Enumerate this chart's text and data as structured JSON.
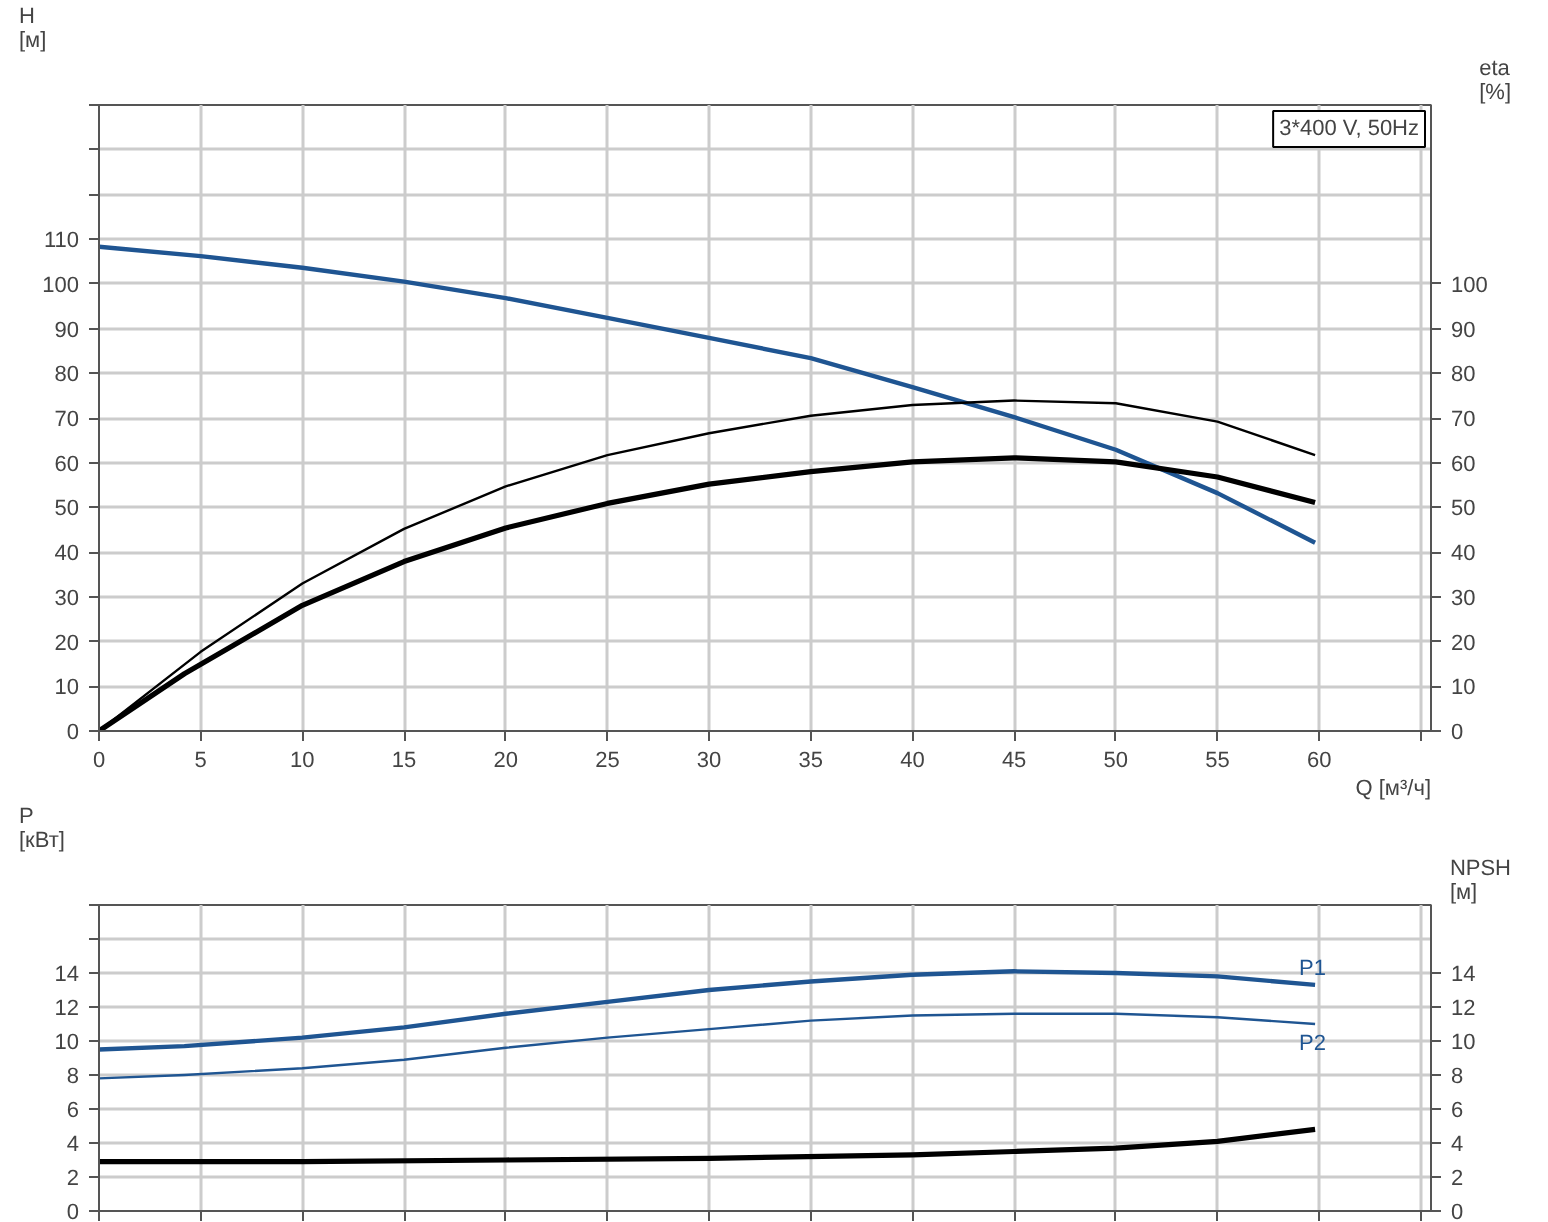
{
  "chart_data": [
    {
      "type": "line",
      "xlabel": "Q [м³/ч]",
      "ylabel": "H\n[м]",
      "y2label": "eta\n[%]",
      "annotations": [
        "3*400 V, 50Hz"
      ],
      "xlim": [
        0,
        65.5
      ],
      "xticks": [
        0,
        5,
        10,
        15,
        20,
        25,
        30,
        35,
        40,
        45,
        50,
        55,
        60,
        {
          "value": 65,
          "label": null
        }
      ],
      "ylim": [
        0,
        140
      ],
      "yticks": [
        0,
        10,
        20,
        30,
        40,
        50,
        60,
        70,
        80,
        90,
        100,
        110,
        {
          "value": 120,
          "label": null
        },
        {
          "value": 130,
          "label": null
        },
        {
          "value": 140,
          "label": null
        }
      ],
      "y2lim": [
        0,
        140
      ],
      "y2ticks": [
        0,
        10,
        20,
        30,
        40,
        50,
        60,
        70,
        80,
        90,
        100
      ],
      "grid": true,
      "line_style": "solid",
      "series": [
        {
          "color": "#1f5592",
          "x": [
            0,
            5,
            10,
            15,
            20,
            25,
            30,
            35,
            40,
            45,
            50,
            55,
            59.8
          ],
          "values": [
            108.3,
            106.2,
            103.6,
            100.5,
            96.8,
            92.4,
            87.9,
            83.4,
            76.9,
            70.2,
            62.9,
            53.2,
            42.1
          ]
        },
        {
          "color": "#000000",
          "x": [
            0,
            5,
            10,
            15,
            20,
            25,
            30,
            35,
            40,
            45,
            50,
            55,
            59.8
          ],
          "values": [
            0,
            17.7,
            33,
            45.2,
            54.7,
            61.7,
            66.6,
            70.5,
            72.9,
            73.9,
            73.3,
            69.2,
            61.7
          ]
        },
        {
          "color": "#000000",
          "x": [
            0,
            4.2,
            10,
            15,
            20,
            25,
            30,
            35,
            40,
            45,
            50,
            55,
            59.8
          ],
          "values": [
            0,
            12.8,
            28.1,
            37.9,
            45.4,
            50.9,
            55.2,
            58.0,
            60.2,
            61.1,
            60.2,
            56.8,
            51.1
          ]
        }
      ]
    },
    {
      "type": "line",
      "ylabel": "P\n[кВт]",
      "y2label": "NPSH\n[м]",
      "tick_labels": "y",
      "xlim": [
        0,
        65.5
      ],
      "xticks": [
        0,
        5,
        10,
        15,
        20,
        25,
        30,
        35,
        40,
        45,
        50,
        55,
        60,
        65
      ],
      "ylim": [
        0,
        18
      ],
      "yticks": [
        0,
        2,
        4,
        6,
        8,
        10,
        12,
        14,
        {
          "value": 16,
          "label": null
        },
        {
          "value": 18,
          "label": null
        }
      ],
      "y2lim": [
        0,
        18
      ],
      "y2ticks": [
        0,
        2,
        4,
        6,
        8,
        10,
        12,
        14
      ],
      "grid": true,
      "line_style": "solid",
      "series": [
        {
          "name": "P1",
          "color": "#1f5592",
          "x": [
            0,
            4.2,
            10,
            15,
            20,
            25,
            30,
            35,
            40,
            45,
            50,
            55,
            59.8
          ],
          "values": [
            9.5,
            9.7,
            10.2,
            10.8,
            11.6,
            12.3,
            13.0,
            13.5,
            13.9,
            14.1,
            14.0,
            13.8,
            13.3
          ]
        },
        {
          "name": "P2",
          "color": "#1f5592",
          "x": [
            0,
            4.2,
            10,
            15,
            20,
            25,
            30,
            35,
            40,
            45,
            50,
            55,
            59.8
          ],
          "values": [
            7.8,
            8.0,
            8.4,
            8.9,
            9.6,
            10.2,
            10.7,
            11.2,
            11.5,
            11.6,
            11.6,
            11.4,
            11.0
          ]
        },
        {
          "color": "#000000",
          "x": [
            0,
            4.2,
            10,
            20,
            30,
            40,
            45,
            50,
            55,
            59.8
          ],
          "values": [
            2.9,
            2.9,
            2.9,
            3.0,
            3.1,
            3.3,
            3.5,
            3.7,
            4.1,
            4.8
          ]
        }
      ]
    }
  ]
}
